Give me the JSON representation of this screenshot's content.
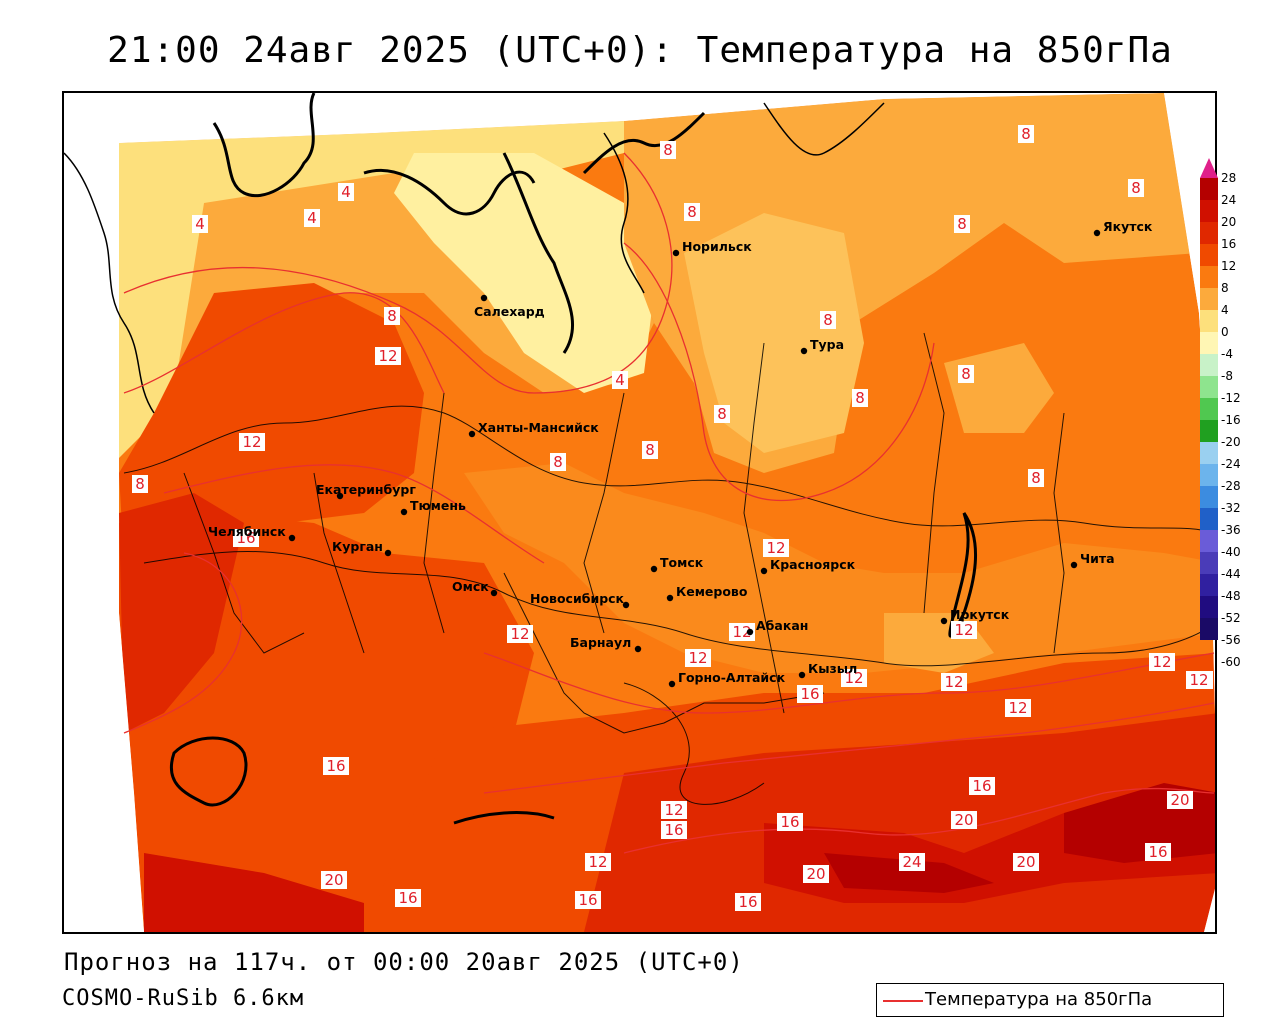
{
  "title": "21:00 24авг 2025 (UTC+0): Температура на 850гПа",
  "footer": {
    "forecast": "Прогноз на 117ч. от 00:00 20авг 2025 (UTC+0)",
    "model": "COSMO-RuSib 6.6км"
  },
  "legend": {
    "label": "Температура на 850гПа",
    "line_color": "#e83030"
  },
  "colorbar": {
    "ticks": [
      "28",
      "24",
      "20",
      "16",
      "12",
      "8",
      "4",
      "0",
      "-4",
      "-8",
      "-12",
      "-16",
      "-20",
      "-24",
      "-28",
      "-32",
      "-36",
      "-40",
      "-44",
      "-48",
      "-52",
      "-56",
      "-60"
    ],
    "colors": [
      "#b40000",
      "#d01000",
      "#e02800",
      "#f04a00",
      "#fa7a10",
      "#fcaa3c",
      "#fde07c",
      "#fff6b4",
      "#c8f2c8",
      "#8ee48e",
      "#50c850",
      "#20a020",
      "#9ad0f0",
      "#6cb4ec",
      "#3c8ce0",
      "#2060c8",
      "#6a5cd8",
      "#4a3cb8",
      "#3020a0",
      "#200c80",
      "#1a0a66"
    ]
  },
  "cities": [
    {
      "name": "Норильск"
    },
    {
      "name": "Салехард"
    },
    {
      "name": "Ханты-Мансийск"
    },
    {
      "name": "Тура"
    },
    {
      "name": "Якутск"
    },
    {
      "name": "Екатеринбург"
    },
    {
      "name": "Тюмень"
    },
    {
      "name": "Челябинск"
    },
    {
      "name": "Курган"
    },
    {
      "name": "Омск"
    },
    {
      "name": "Новосибирск"
    },
    {
      "name": "Томск"
    },
    {
      "name": "Кемерово"
    },
    {
      "name": "Красноярск"
    },
    {
      "name": "Барнаул"
    },
    {
      "name": "Абакан"
    },
    {
      "name": "Горно-Алтайск"
    },
    {
      "name": "Кызыл"
    },
    {
      "name": "Иркутск"
    },
    {
      "name": "Чита"
    }
  ],
  "isotherm_labels": [
    "4",
    "8",
    "12",
    "16",
    "20",
    "24"
  ],
  "colors": {
    "isotherm": "#e83030",
    "background": "#ffffff"
  }
}
